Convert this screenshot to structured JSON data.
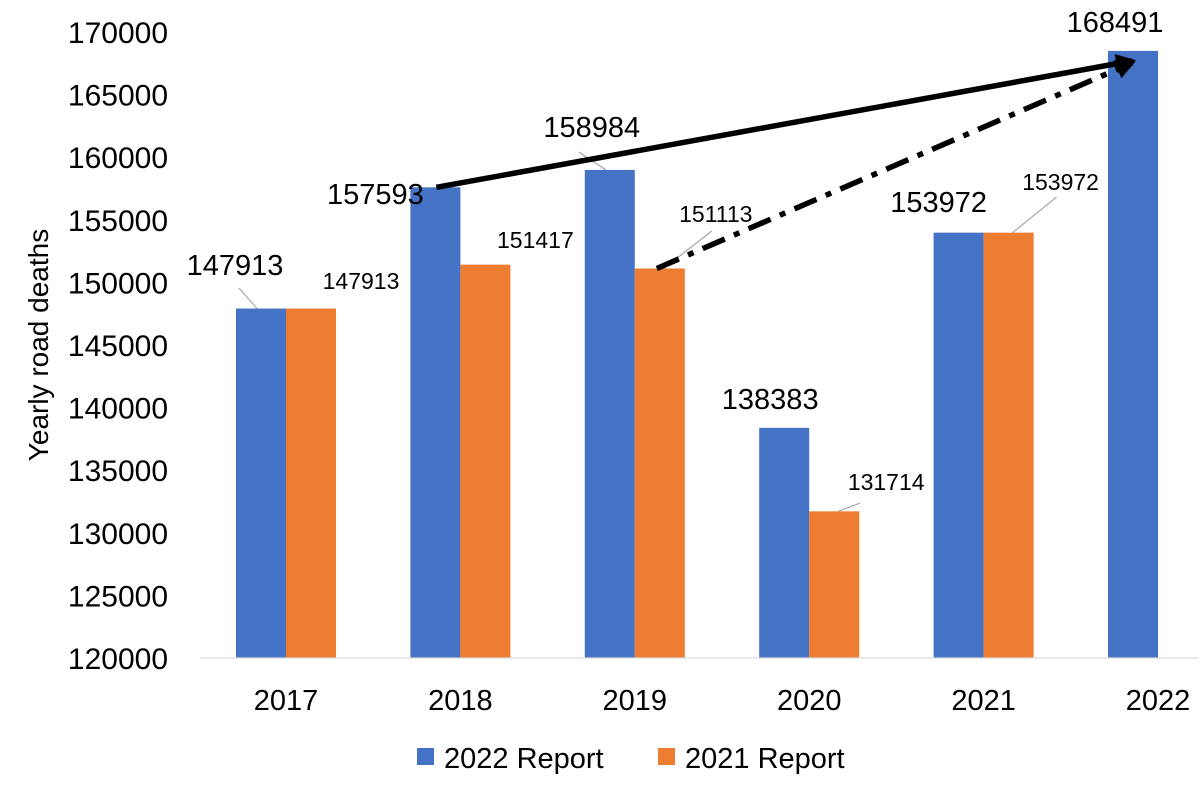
{
  "chart_data": {
    "type": "bar",
    "title": "",
    "xlabel": "",
    "ylabel": "Yearly road deaths",
    "ylim": [
      120000,
      170000
    ],
    "ytick_step": 5000,
    "grid": false,
    "legend_position": "bottom-center",
    "categories": [
      "2017",
      "2018",
      "2019",
      "2020",
      "2021",
      "2022"
    ],
    "series": [
      {
        "name": "2022 Report",
        "color": "#4472c4",
        "values": [
          147913,
          157593,
          158984,
          138383,
          153972,
          168491
        ]
      },
      {
        "name": "2021 Report",
        "color": "#ed7d31",
        "values": [
          147913,
          151417,
          151113,
          131714,
          153972,
          null
        ]
      }
    ],
    "annotations": [
      {
        "type": "solid-arrow",
        "from": {
          "category": "2018",
          "value": 157593
        },
        "to": {
          "category": "2022",
          "value": 168491
        },
        "color": "#000000"
      },
      {
        "type": "dash-dot-arrow",
        "from": {
          "category": "2019",
          "value": 151113
        },
        "to": {
          "category": "2022",
          "value": 168491
        },
        "color": "#000000"
      }
    ]
  }
}
